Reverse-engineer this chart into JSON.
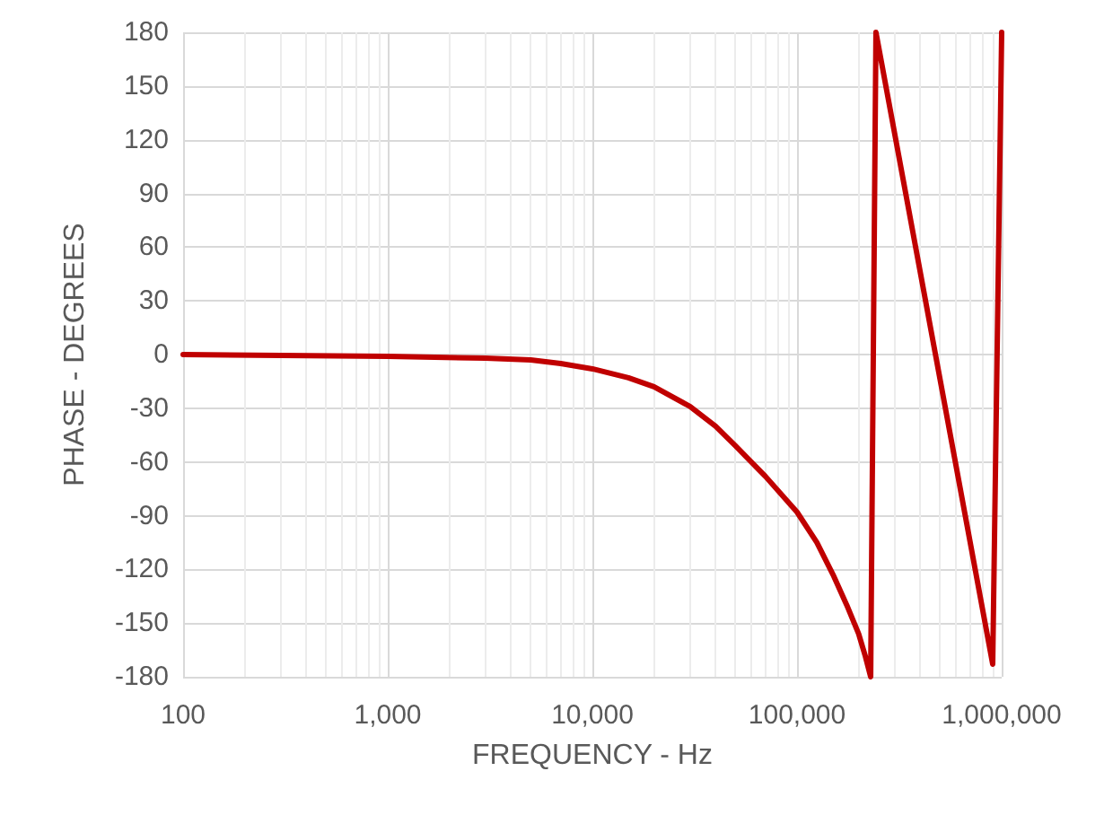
{
  "chart_data": {
    "type": "line",
    "xlabel": "FREQUENCY - Hz",
    "ylabel": "PHASE - DEGREES",
    "x": [
      100,
      1000,
      3000,
      5000,
      7000,
      10000,
      15000,
      20000,
      30000,
      40000,
      50000,
      70000,
      100000,
      125000,
      150000,
      175000,
      200000,
      215000,
      229000,
      243000,
      904000,
      1000000
    ],
    "series": [
      {
        "color": "#c00000",
        "values": [
          0,
          -1,
          -2,
          -3,
          -5,
          -8,
          -13,
          -18,
          -29,
          -40,
          -51,
          -68,
          -88,
          -105,
          -123,
          -140,
          -156,
          -168,
          -180,
          180,
          -173,
          180
        ]
      }
    ],
    "log": "x",
    "xlim": [
      100,
      1000000
    ],
    "xticks": [
      {
        "value": 100,
        "label": "100"
      },
      {
        "value": 1000,
        "label": "1,000"
      },
      {
        "value": 10000,
        "label": "10,000"
      },
      {
        "value": 100000,
        "label": "100,000"
      },
      {
        "value": 1000000,
        "label": "1,000,000"
      }
    ],
    "ylim": [
      -180,
      180
    ],
    "yticks": [
      -180,
      -150,
      -120,
      -90,
      -60,
      -30,
      0,
      30,
      60,
      90,
      120,
      150,
      180
    ],
    "grid": true,
    "marker": "none",
    "line_style": "solid"
  }
}
